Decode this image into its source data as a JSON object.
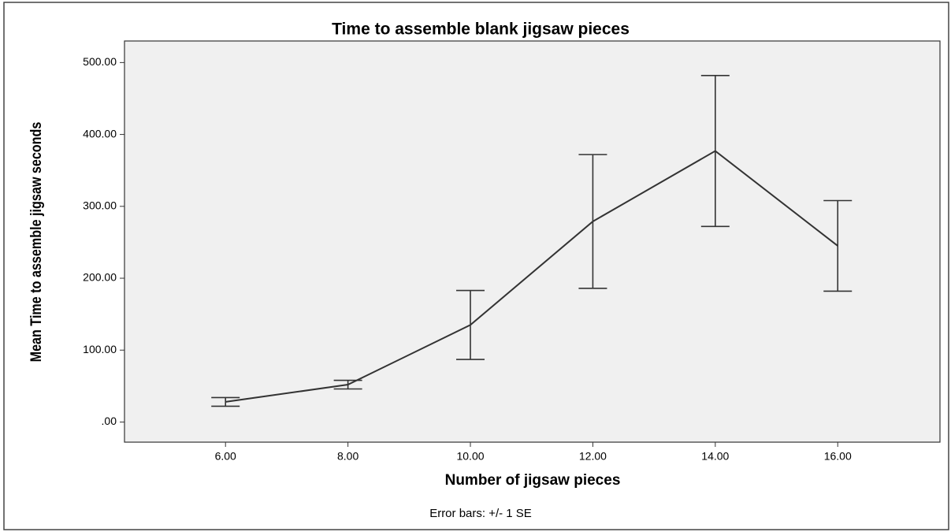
{
  "chart_data": {
    "type": "line",
    "title": "Time to assemble blank jigsaw pieces",
    "x_label": "Number of jigsaw pieces",
    "y_label": "Mean Time to assemble jigsaw seconds",
    "note": "Error bars: +/- 1 SE",
    "x": [
      6,
      8,
      10,
      12,
      14,
      16
    ],
    "series": [
      {
        "name": "Mean Time to assemble jigsaw seconds",
        "color": "#333333",
        "values": [
          28,
          52,
          135,
          279,
          377,
          245
        ],
        "errors": [
          6,
          6,
          48,
          93,
          105,
          63
        ]
      }
    ],
    "xlim": [
      4.35,
      17.67
    ],
    "ylim": [
      -28,
      530
    ],
    "xticks": [
      {
        "value": 6,
        "label": "6.00"
      },
      {
        "value": 8,
        "label": "8.00"
      },
      {
        "value": 10,
        "label": "10.00"
      },
      {
        "value": 12,
        "label": "12.00"
      },
      {
        "value": 14,
        "label": "14.00"
      },
      {
        "value": 16,
        "label": "16.00"
      }
    ],
    "yticks": [
      {
        "value": 0,
        "label": ".00"
      },
      {
        "value": 100,
        "label": "100.00"
      },
      {
        "value": 200,
        "label": "200.00"
      },
      {
        "value": 300,
        "label": "300.00"
      },
      {
        "value": 400,
        "label": "400.00"
      },
      {
        "value": 500,
        "label": "500.00"
      }
    ],
    "grid": false
  }
}
